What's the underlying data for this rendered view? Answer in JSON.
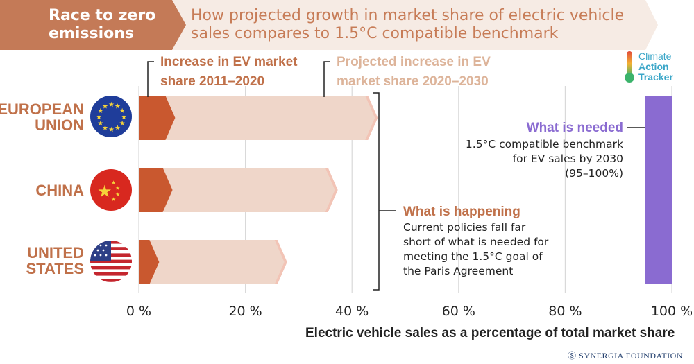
{
  "header": {
    "tag": "Race to zero emissions",
    "title": "How projected growth in market share of electric vehicle sales compares to 1.5°C compatible benchmark"
  },
  "logo": {
    "line1": "Climate",
    "line2": "Action",
    "line3": "Tracker"
  },
  "footer": {
    "text": "SYNERGIA FOUNDATION"
  },
  "colors": {
    "increase_2011_2020": "#c9582f",
    "projected_2020_2030": "#efd6c9",
    "needed": "#8a6bd1",
    "label_brown": "#c0714a",
    "label_light": "#ddb49a"
  },
  "chart_data": {
    "type": "bar",
    "orientation": "horizontal",
    "stacked": true,
    "categories": [
      "EUROPEAN UNION",
      "CHINA",
      "UNITED STATES"
    ],
    "series": [
      {
        "name": "Increase in EV market share 2011–2020",
        "values": [
          5,
          4.5,
          2
        ]
      },
      {
        "name": "Projected increase in EV market share 2020–2030",
        "values": [
          38,
          31,
          24
        ]
      }
    ],
    "benchmark": {
      "label": "What is needed",
      "range": [
        95,
        100
      ]
    },
    "xticks": [
      0,
      20,
      40,
      60,
      80,
      100
    ],
    "xtick_labels": [
      "0 %",
      "20 %",
      "40 %",
      "60 %",
      "80 %",
      "100 %"
    ],
    "xlim": [
      0,
      100
    ],
    "xlabel": "Electric vehicle sales as a percentage of total market share",
    "legend": {
      "increase": [
        "Increase in EV market",
        "share 2011–2020"
      ],
      "projected": [
        "Projected increase in EV",
        "market share 2020–2030"
      ]
    },
    "category_lines": [
      [
        "EUROPEAN",
        "UNION"
      ],
      [
        "CHINA"
      ],
      [
        "UNITED",
        "STATES"
      ]
    ],
    "annotations": {
      "needed_title": "What is needed",
      "needed_lines": [
        "1.5°C compatible benchmark",
        "for EV sales by 2030",
        "(95–100%)"
      ],
      "happening_title": "What is happening",
      "happening_lines": [
        "Current policies fall far",
        "short of what is needed for",
        "meeting the 1.5°C goal of",
        "the Paris Agreement"
      ]
    }
  }
}
